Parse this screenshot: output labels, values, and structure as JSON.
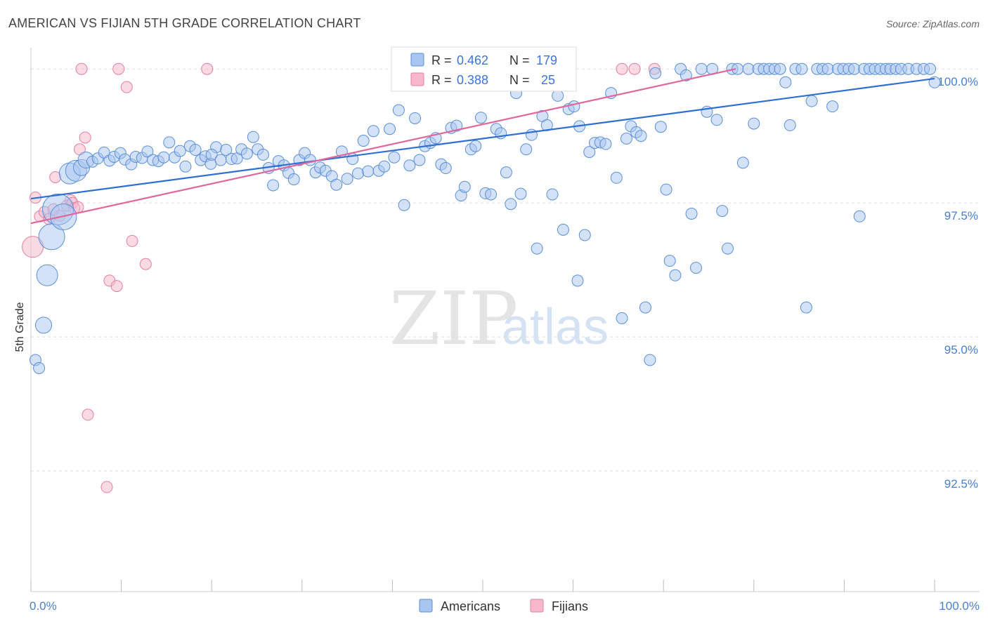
{
  "chart_data": {
    "type": "scatter",
    "title": "AMERICAN VS FIJIAN 5TH GRADE CORRELATION CHART",
    "source": "Source: ZipAtlas.com",
    "ylabel": "5th Grade",
    "xlabel": "",
    "xlim": [
      0,
      100
    ],
    "ylim": [
      90.25,
      100.5
    ],
    "x_tick_labels": [
      "0.0%",
      "100.0%"
    ],
    "y_ticks": [
      {
        "value": 100.0,
        "label": "100.0%"
      },
      {
        "value": 97.5,
        "label": "97.5%"
      },
      {
        "value": 95.0,
        "label": "95.0%"
      },
      {
        "value": 92.5,
        "label": "92.5%"
      }
    ],
    "grid": true,
    "legend_position": "top-center",
    "watermark": {
      "zip": "ZIP",
      "atlas": "atlas"
    },
    "colors": {
      "americans_fill": "#a9c6f0",
      "americans_stroke": "#5b8fd9",
      "americans_line": "#2f6fd2",
      "fijians_fill": "#f6b8ca",
      "fijians_stroke": "#e57f9f",
      "fijians_line": "#e0679a",
      "tick_label": "#4a7fd0",
      "grid": "#dddddd"
    },
    "series": [
      {
        "name": "Americans",
        "R": "0.462",
        "N": "179",
        "trend": {
          "x": [
            0,
            100
          ],
          "y": [
            97.58,
            99.82
          ]
        },
        "points": [
          [
            0.5,
            94.57
          ],
          [
            0.9,
            94.42
          ],
          [
            1.4,
            95.22
          ],
          [
            1.8,
            96.15
          ],
          [
            2.3,
            96.87
          ],
          [
            3.0,
            97.38
          ],
          [
            3.6,
            97.24
          ],
          [
            4.3,
            98.05
          ],
          [
            5.0,
            98.1
          ],
          [
            5.6,
            98.16
          ],
          [
            6.1,
            98.3
          ],
          [
            6.8,
            98.27
          ],
          [
            7.4,
            98.33
          ],
          [
            8.1,
            98.44
          ],
          [
            8.7,
            98.29
          ],
          [
            9.2,
            98.36
          ],
          [
            9.9,
            98.43
          ],
          [
            10.4,
            98.31
          ],
          [
            11.1,
            98.22
          ],
          [
            11.6,
            98.36
          ],
          [
            12.3,
            98.34
          ],
          [
            12.9,
            98.46
          ],
          [
            13.5,
            98.3
          ],
          [
            14.1,
            98.28
          ],
          [
            14.7,
            98.35
          ],
          [
            15.3,
            98.63
          ],
          [
            15.9,
            98.35
          ],
          [
            16.5,
            98.47
          ],
          [
            17.1,
            98.18
          ],
          [
            17.6,
            98.56
          ],
          [
            18.2,
            98.49
          ],
          [
            18.8,
            98.3
          ],
          [
            19.3,
            98.37
          ],
          [
            19.9,
            98.23
          ],
          [
            20.5,
            98.54
          ],
          [
            20.0,
            98.4
          ],
          [
            21.0,
            98.3
          ],
          [
            21.6,
            98.49
          ],
          [
            22.2,
            98.32
          ],
          [
            22.8,
            98.33
          ],
          [
            23.3,
            98.5
          ],
          [
            23.9,
            98.42
          ],
          [
            24.6,
            98.73
          ],
          [
            25.1,
            98.5
          ],
          [
            25.7,
            98.4
          ],
          [
            26.3,
            98.15
          ],
          [
            26.8,
            97.83
          ],
          [
            27.4,
            98.28
          ],
          [
            28.0,
            98.2
          ],
          [
            28.5,
            98.06
          ],
          [
            29.1,
            97.94
          ],
          [
            29.7,
            98.3
          ],
          [
            30.3,
            98.43
          ],
          [
            30.9,
            98.3
          ],
          [
            31.5,
            98.07
          ],
          [
            32.0,
            98.16
          ],
          [
            32.6,
            98.1
          ],
          [
            33.3,
            98.0
          ],
          [
            33.8,
            97.84
          ],
          [
            34.4,
            98.46
          ],
          [
            35.0,
            97.95
          ],
          [
            35.6,
            98.32
          ],
          [
            36.2,
            98.05
          ],
          [
            36.8,
            98.66
          ],
          [
            37.3,
            98.09
          ],
          [
            37.9,
            98.84
          ],
          [
            38.5,
            98.1
          ],
          [
            39.1,
            98.18
          ],
          [
            39.7,
            98.88
          ],
          [
            40.2,
            98.35
          ],
          [
            40.7,
            99.23
          ],
          [
            41.3,
            97.46
          ],
          [
            41.9,
            98.2
          ],
          [
            42.5,
            99.08
          ],
          [
            43.0,
            98.3
          ],
          [
            43.6,
            98.56
          ],
          [
            44.2,
            98.62
          ],
          [
            44.8,
            98.71
          ],
          [
            45.4,
            98.22
          ],
          [
            45.9,
            98.15
          ],
          [
            46.5,
            98.9
          ],
          [
            47.1,
            98.94
          ],
          [
            47.6,
            97.64
          ],
          [
            48.0,
            97.8
          ],
          [
            48.7,
            98.5
          ],
          [
            49.2,
            98.56
          ],
          [
            49.8,
            99.09
          ],
          [
            50.3,
            97.68
          ],
          [
            50.9,
            97.66
          ],
          [
            51.5,
            98.88
          ],
          [
            52.0,
            98.8
          ],
          [
            52.6,
            98.07
          ],
          [
            53.1,
            97.48
          ],
          [
            53.7,
            99.55
          ],
          [
            54.2,
            97.67
          ],
          [
            54.8,
            98.5
          ],
          [
            55.4,
            98.77
          ],
          [
            56.0,
            96.65
          ],
          [
            56.6,
            99.12
          ],
          [
            57.1,
            98.95
          ],
          [
            57.7,
            97.66
          ],
          [
            58.3,
            99.5
          ],
          [
            58.9,
            97.0
          ],
          [
            59.5,
            99.25
          ],
          [
            60.1,
            99.3
          ],
          [
            60.7,
            98.93
          ],
          [
            61.3,
            96.9
          ],
          [
            61.8,
            98.45
          ],
          [
            62.4,
            98.62
          ],
          [
            63.0,
            98.63
          ],
          [
            63.6,
            98.6
          ],
          [
            64.2,
            99.55
          ],
          [
            64.8,
            97.97
          ],
          [
            65.4,
            95.35
          ],
          [
            65.9,
            98.7
          ],
          [
            66.4,
            98.93
          ],
          [
            67.0,
            98.82
          ],
          [
            67.5,
            98.75
          ],
          [
            68.0,
            95.55
          ],
          [
            68.5,
            94.57
          ],
          [
            69.1,
            99.92
          ],
          [
            69.7,
            98.92
          ],
          [
            70.3,
            97.75
          ],
          [
            70.7,
            96.42
          ],
          [
            71.3,
            96.15
          ],
          [
            71.9,
            100.0
          ],
          [
            72.5,
            99.88
          ],
          [
            73.1,
            97.3
          ],
          [
            73.6,
            96.29
          ],
          [
            74.2,
            100.0
          ],
          [
            74.8,
            99.2
          ],
          [
            75.4,
            100.0
          ],
          [
            75.9,
            99.05
          ],
          [
            76.5,
            97.35
          ],
          [
            77.1,
            96.65
          ],
          [
            77.6,
            100.0
          ],
          [
            78.2,
            100.0
          ],
          [
            78.8,
            98.25
          ],
          [
            79.4,
            100.0
          ],
          [
            80.0,
            98.98
          ],
          [
            80.5,
            100.0
          ],
          [
            81.1,
            100.0
          ],
          [
            81.7,
            100.0
          ],
          [
            82.3,
            100.0
          ],
          [
            82.9,
            100.0
          ],
          [
            83.5,
            99.75
          ],
          [
            84.0,
            98.95
          ],
          [
            84.6,
            100.0
          ],
          [
            85.3,
            100.0
          ],
          [
            85.8,
            95.55
          ],
          [
            86.4,
            99.4
          ],
          [
            87.0,
            100.0
          ],
          [
            87.6,
            100.0
          ],
          [
            88.2,
            100.0
          ],
          [
            88.7,
            99.3
          ],
          [
            89.3,
            100.0
          ],
          [
            89.9,
            100.0
          ],
          [
            90.5,
            100.0
          ],
          [
            91.1,
            100.0
          ],
          [
            91.7,
            97.25
          ],
          [
            92.2,
            100.0
          ],
          [
            92.8,
            100.0
          ],
          [
            93.4,
            100.0
          ],
          [
            94.0,
            100.0
          ],
          [
            94.6,
            100.0
          ],
          [
            95.1,
            100.0
          ],
          [
            95.7,
            100.0
          ],
          [
            96.3,
            100.0
          ],
          [
            97.1,
            100.0
          ],
          [
            98.0,
            100.0
          ],
          [
            98.8,
            100.0
          ],
          [
            99.5,
            100.0
          ],
          [
            100.0,
            99.75
          ],
          [
            60.5,
            96.05
          ]
        ],
        "sizes": [
          1,
          1,
          2,
          3,
          4,
          5,
          4,
          3,
          3,
          2,
          2,
          1,
          1,
          1,
          1,
          1,
          1,
          1,
          1,
          1,
          1,
          1,
          1,
          1,
          1,
          1,
          1,
          1,
          1,
          1,
          1,
          1,
          1,
          1,
          1,
          1,
          1,
          1,
          1,
          1,
          1,
          1,
          1,
          1,
          1,
          1,
          1,
          1,
          1,
          1,
          1,
          1,
          1,
          1,
          1,
          1,
          1,
          1,
          1,
          1,
          1,
          1,
          1,
          1,
          1,
          1,
          1,
          1,
          1,
          1,
          1,
          1,
          1,
          1,
          1,
          1,
          1,
          1,
          1,
          1,
          1,
          1,
          1,
          1,
          1,
          1,
          1,
          1,
          1,
          1,
          1,
          1,
          1,
          1,
          1,
          1,
          1,
          1,
          1,
          1,
          1,
          1,
          1,
          1,
          1,
          1,
          1,
          1,
          1,
          1,
          1,
          1,
          1,
          1,
          1,
          1,
          1,
          1,
          1,
          1,
          1,
          1,
          1,
          1,
          1,
          1,
          1,
          1,
          1,
          1,
          1,
          1,
          1,
          1,
          1,
          1,
          1,
          1,
          1,
          1,
          1,
          1,
          1,
          1,
          1,
          1,
          1,
          1,
          1,
          1,
          1,
          1,
          1,
          1,
          1,
          1,
          1,
          1,
          1,
          1,
          1,
          1,
          1,
          1,
          1,
          1,
          1,
          1,
          1,
          1,
          1,
          1,
          1,
          1,
          1,
          1,
          1,
          1
        ]
      },
      {
        "name": "Fijians",
        "R": "0.388",
        "N": "25",
        "trend": {
          "x": [
            0,
            78
          ],
          "y": [
            97.12,
            100.0
          ]
        },
        "points": [
          [
            0.2,
            96.68
          ],
          [
            0.5,
            97.6
          ],
          [
            1.0,
            97.25
          ],
          [
            1.5,
            97.33
          ],
          [
            2.0,
            97.2
          ],
          [
            2.5,
            97.38
          ],
          [
            2.7,
            97.98
          ],
          [
            3.2,
            97.26
          ],
          [
            4.0,
            97.45
          ],
          [
            4.4,
            97.55
          ],
          [
            4.6,
            97.5
          ],
          [
            4.8,
            97.4
          ],
          [
            5.2,
            97.42
          ],
          [
            5.4,
            98.5
          ],
          [
            5.6,
            100.0
          ],
          [
            6.0,
            98.72
          ],
          [
            6.3,
            93.55
          ],
          [
            8.4,
            92.2
          ],
          [
            8.7,
            96.05
          ],
          [
            9.5,
            95.95
          ],
          [
            9.7,
            100.0
          ],
          [
            10.6,
            99.66
          ],
          [
            11.2,
            96.79
          ],
          [
            12.7,
            96.36
          ],
          [
            19.5,
            100.0
          ],
          [
            65.4,
            100.0
          ],
          [
            66.8,
            100.0
          ],
          [
            69.0,
            100.0
          ]
        ],
        "sizes": [
          3,
          1,
          1,
          1,
          1,
          1,
          1,
          1,
          1,
          1,
          1,
          1,
          1,
          1,
          1,
          1,
          1,
          1,
          1,
          1,
          1,
          1,
          1,
          1,
          1,
          1,
          1,
          1
        ]
      }
    ]
  }
}
